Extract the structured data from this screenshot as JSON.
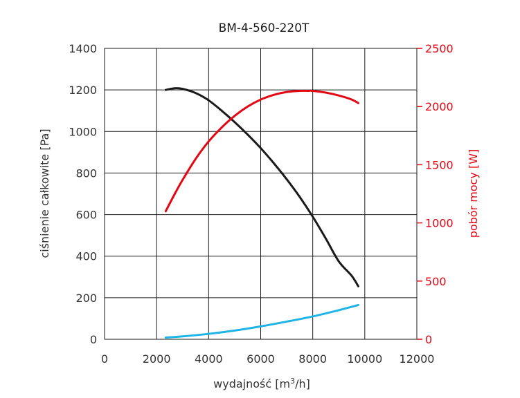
{
  "chart_data": {
    "type": "line",
    "title": "BM-4-560-220T",
    "xlabel_prefix": "wydajność [m",
    "xlabel_sup": "3",
    "xlabel_suffix": "/h]",
    "ylabel_left": "ciśnienie całkowite [Pa]",
    "ylabel_right": "pobór mocy [W]",
    "xlim": [
      0,
      12000
    ],
    "ylim_left": [
      0,
      1400
    ],
    "ylim_right": [
      0,
      2500
    ],
    "x_ticks": [
      "0",
      "2000",
      "4000",
      "6000",
      "8000",
      "10000",
      "12000"
    ],
    "y_left_ticks": [
      "0",
      "200",
      "400",
      "600",
      "800",
      "1000",
      "1200",
      "1400"
    ],
    "y_right_ticks": [
      "0",
      "500",
      "1000",
      "1500",
      "2000",
      "2500"
    ],
    "grid": true,
    "colors": {
      "left_axis": "#333333",
      "right_axis": "#e30613"
    },
    "series": [
      {
        "axis": "left",
        "color": "#1a1a1a",
        "x": [
          2350,
          2700,
          3000,
          3500,
          4000,
          4500,
          5000,
          5500,
          6000,
          6500,
          7000,
          7500,
          8000,
          8500,
          9000,
          9500,
          9750
        ],
        "y": [
          1200,
          1208,
          1205,
          1185,
          1150,
          1100,
          1045,
          985,
          920,
          848,
          770,
          685,
          590,
          485,
          375,
          305,
          255
        ]
      },
      {
        "axis": "right",
        "color": "#e30613",
        "x": [
          2350,
          2700,
          3000,
          3500,
          4000,
          4500,
          5000,
          5500,
          6000,
          6500,
          7000,
          7500,
          7800,
          8000,
          8500,
          9000,
          9500,
          9750
        ],
        "y": [
          1100,
          1250,
          1370,
          1550,
          1700,
          1820,
          1920,
          2000,
          2060,
          2100,
          2125,
          2135,
          2135,
          2135,
          2120,
          2095,
          2060,
          2030
        ]
      },
      {
        "axis": "left",
        "color": "#1eb4e6",
        "x": [
          2350,
          3000,
          4000,
          5000,
          6000,
          7000,
          8000,
          9000,
          9750
        ],
        "y": [
          8,
          14,
          26,
          42,
          62,
          85,
          110,
          140,
          165
        ]
      }
    ]
  }
}
